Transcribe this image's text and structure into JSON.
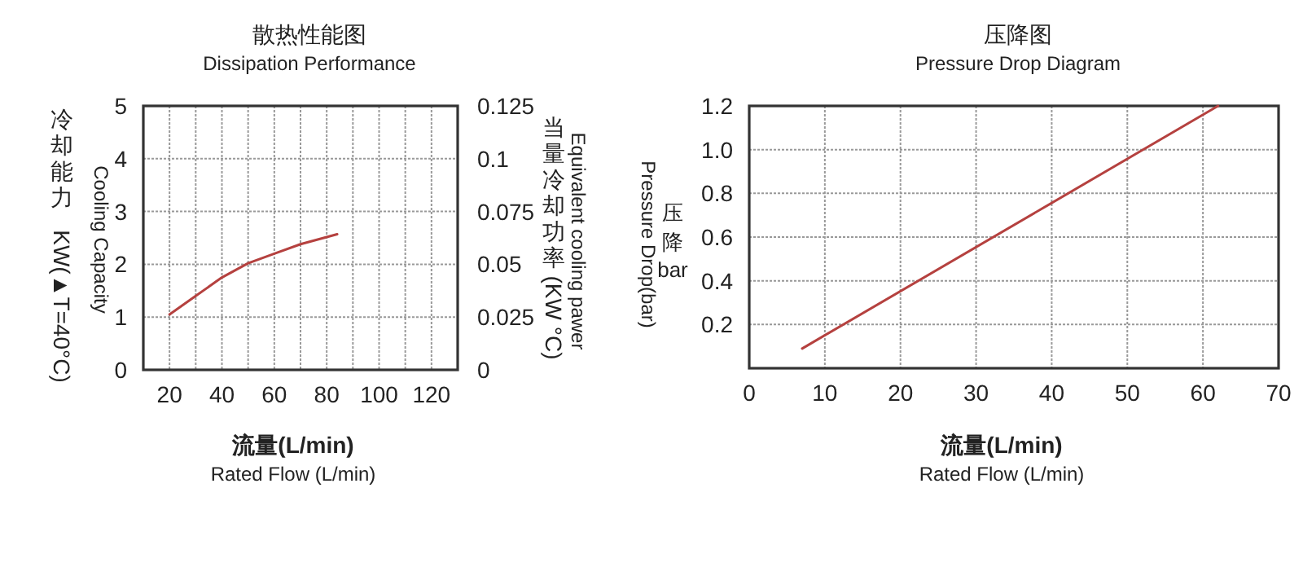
{
  "chart_data": [
    {
      "type": "line",
      "title": "散热性能图",
      "subtitle": "Dissipation Performance",
      "xlabel": "流量(L/min)",
      "ylabel": "冷却能力",
      "y2label": "当量冷却功率",
      "annotations": [
        "Cooling Capacity",
        "Equivalent cooling pawer",
        "Rated Flow (L/min)",
        "KW(▲T=40°C)",
        "(KW °C)"
      ],
      "xlim": [
        10,
        130
      ],
      "xticks": [
        20,
        {
          "value": 30,
          "label": null
        },
        40,
        {
          "value": 50,
          "label": null
        },
        60,
        {
          "value": 70,
          "label": null
        },
        80,
        {
          "value": 90,
          "label": null
        },
        100,
        {
          "value": 110,
          "label": null
        },
        120
      ],
      "ylim": [
        0,
        5
      ],
      "yticks": [
        0,
        1,
        2,
        3,
        4,
        5
      ],
      "y2lim": [
        0,
        0.125
      ],
      "y2ticks": [
        0,
        0.025,
        0.05,
        0.075,
        0.1,
        0.125
      ],
      "grid": true,
      "series": [
        {
          "color": "#b5413f",
          "x": [
            20,
            30,
            40,
            50,
            60,
            70,
            84
          ],
          "values": [
            1.05,
            1.4,
            1.75,
            2.02,
            2.2,
            2.38,
            2.57
          ]
        }
      ]
    },
    {
      "type": "line",
      "title": "压降图",
      "subtitle": "Pressure Drop Diagram",
      "xlabel": "流量(L/min)",
      "ylabel": "压降bar",
      "annotations": [
        "Pressure Drop(bar)",
        "Rated Flow (L/min)"
      ],
      "xlim": [
        0,
        70
      ],
      "xticks": [
        0,
        10,
        20,
        30,
        40,
        50,
        60,
        70
      ],
      "ylim": [
        0,
        1.2
      ],
      "yticks": [
        {
          "value": 0,
          "label": null
        },
        0.2,
        0.4,
        0.6,
        0.8,
        {
          "value": 1,
          "label": "1.0"
        },
        1.2
      ],
      "grid": true,
      "series": [
        {
          "color": "#b5413f",
          "x": [
            7,
            62
          ],
          "values": [
            0.09,
            1.2
          ]
        }
      ]
    }
  ]
}
